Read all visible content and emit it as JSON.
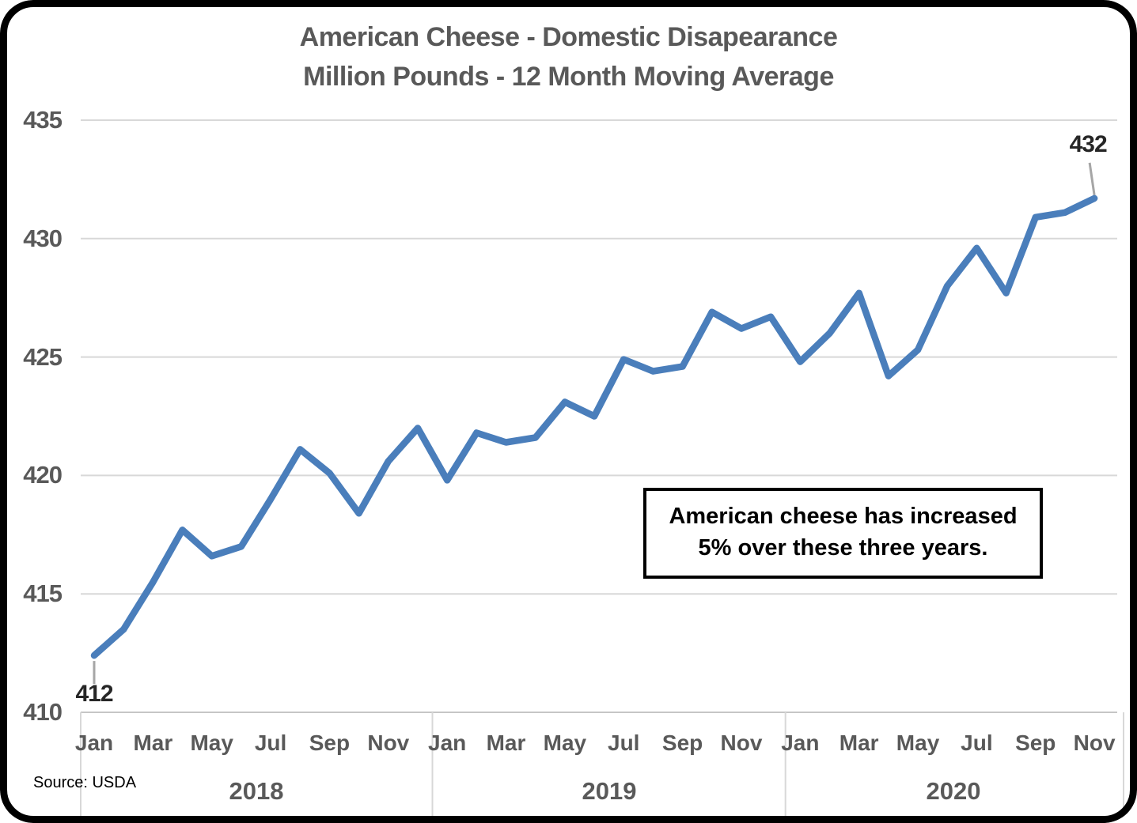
{
  "title": {
    "line1": "American Cheese - Domestic Disapearance",
    "line2": "Million Pounds - 12 Month Moving Average"
  },
  "annotation_box": {
    "line1": "American cheese has increased",
    "line2": "5% over these three years."
  },
  "source_label": "Source: USDA",
  "colors": {
    "line": "#4a7ebb",
    "gridline": "#d8d8d8",
    "axis_text": "#595959",
    "data_label_text": "#262626",
    "leader_line": "#a6a6a6",
    "annotation_border": "#000000"
  },
  "chart_data": {
    "type": "line",
    "title": "American Cheese - Domestic Disapearance",
    "subtitle": "Million Pounds - 12 Month Moving Average",
    "ylabel": "Million Pounds",
    "ylim": [
      410,
      435
    ],
    "yticks": [
      435,
      430,
      425,
      420,
      415,
      410
    ],
    "grid": "horizontal",
    "legend": "none",
    "first_point_label": "412",
    "last_point_label": "432",
    "x": [
      "Jan 2018",
      "Feb 2018",
      "Mar 2018",
      "Apr 2018",
      "May 2018",
      "Jun 2018",
      "Jul 2018",
      "Aug 2018",
      "Sep 2018",
      "Oct 2018",
      "Nov 2018",
      "Dec 2018",
      "Jan 2019",
      "Feb 2019",
      "Mar 2019",
      "Apr 2019",
      "May 2019",
      "Jun 2019",
      "Jul 2019",
      "Aug 2019",
      "Sep 2019",
      "Oct 2019",
      "Nov 2019",
      "Dec 2019",
      "Jan 2020",
      "Feb 2020",
      "Mar 2020",
      "Apr 2020",
      "May 2020",
      "Jun 2020",
      "Jul 2020",
      "Aug 2020",
      "Sep 2020",
      "Oct 2020",
      "Nov 2020"
    ],
    "series": [
      {
        "name": "American cheese domestic disappearance, 12-month moving average (million pounds)",
        "color": "#4a7ebb",
        "values": [
          412.4,
          413.5,
          415.5,
          417.7,
          416.6,
          417.0,
          419.0,
          421.1,
          420.1,
          418.4,
          420.6,
          422.0,
          419.8,
          421.8,
          421.4,
          421.6,
          423.1,
          422.5,
          424.9,
          424.4,
          424.6,
          426.9,
          426.2,
          426.7,
          424.8,
          426.0,
          427.7,
          424.2,
          425.3,
          428.0,
          429.6,
          427.7,
          430.9,
          431.1,
          431.7
        ]
      }
    ],
    "x_axis": {
      "month_tick_labels": [
        "Jan",
        "Mar",
        "May",
        "Jul",
        "Sep",
        "Nov"
      ],
      "year_labels": [
        "2018",
        "2019",
        "2020"
      ]
    }
  }
}
